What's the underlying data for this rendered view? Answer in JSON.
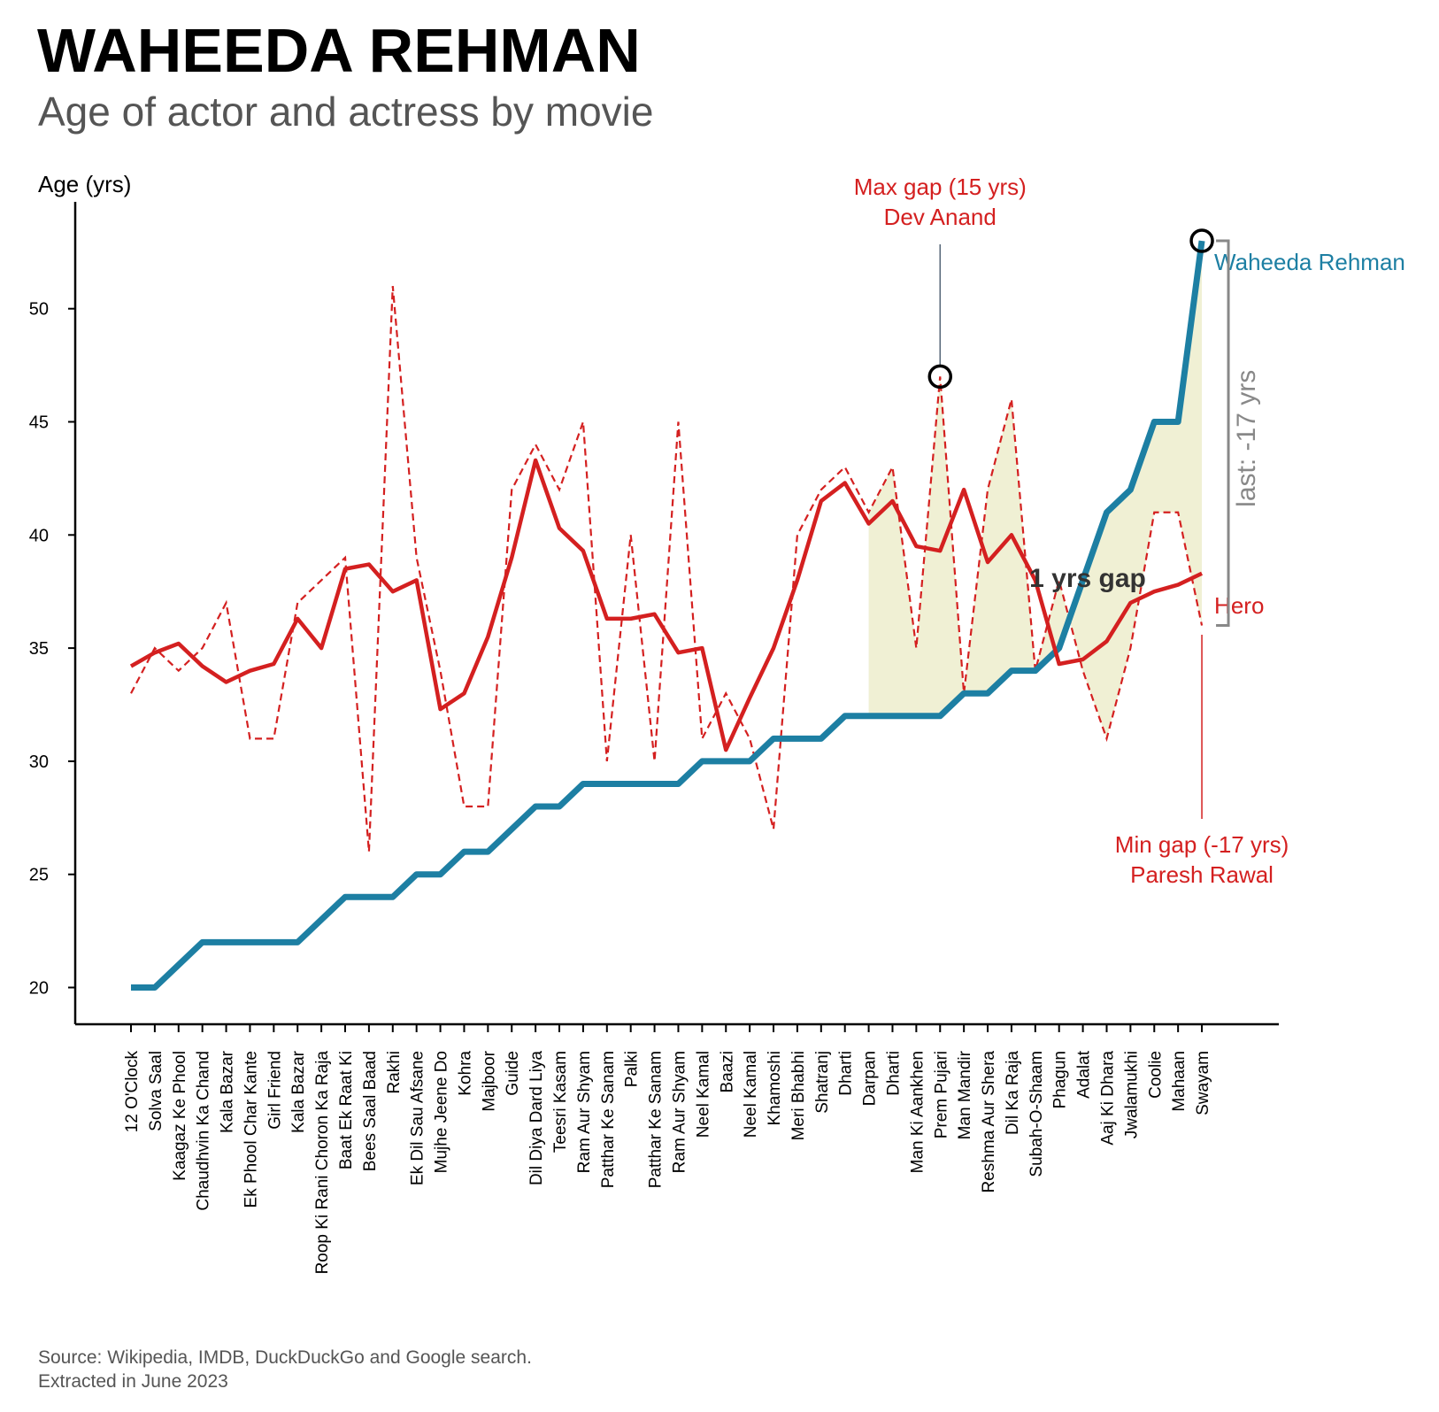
{
  "title": "WAHEEDA REHMAN",
  "subtitle": "Age of actor and actress by movie",
  "source_line1": "Source: Wikipedia, IMDB, DuckDuckGo and Google search.",
  "source_line2": "Extracted in June 2023",
  "colors": {
    "actress": "#1d7fa3",
    "hero": "#d42020",
    "fill": "#f0f0d4",
    "bracket": "#888888"
  },
  "chart_data": {
    "type": "line",
    "ylabel": "Age (yrs)",
    "xlabel": "",
    "ylim": [
      18.5,
      54.8
    ],
    "yticks": [
      20,
      25,
      30,
      35,
      40,
      45,
      50
    ],
    "categories": [
      "12 O'Clock",
      "Solva Saal",
      "Kaagaz Ke Phool",
      "Chaudhvin Ka Chand",
      "Kala Bazar",
      "Ek Phool Char Kante",
      "Girl Friend",
      "Kala Bazar",
      "Roop Ki Rani Choron Ka Raja",
      "Baat Ek Raat Ki",
      "Bees Saal Baad",
      "Rakhi",
      "Ek Dil Sau Afsane",
      "Mujhe Jeene Do",
      "Kohra",
      "Majboor",
      "Guide",
      "Dil Diya Dard Liya",
      "Teesri Kasam",
      "Ram Aur Shyam",
      "Patthar Ke Sanam",
      "Palki",
      "Patthar Ke Sanam",
      "Ram Aur Shyam",
      "Neel Kamal",
      "Baazi",
      "Neel Kamal",
      "Khamoshi",
      "Meri Bhabhi",
      "Shatranj",
      "Dharti",
      "Darpan",
      "Dharti",
      "Man Ki Aankhen",
      "Prem Pujari",
      "Man Mandir",
      "Reshma Aur Shera",
      "Dil Ka Raja",
      "Subah-O-Shaam",
      "Phagun",
      "Adalat",
      "Aaj Ki Dhara",
      "Jwalamukhi",
      "Coolie",
      "Mahaan",
      "Swayam"
    ],
    "series": [
      {
        "values": [
          20,
          20,
          21,
          22,
          22,
          22,
          22,
          22,
          23,
          24,
          24,
          24,
          25,
          25,
          26,
          26,
          27,
          28,
          28,
          29,
          29,
          29,
          29,
          29,
          30,
          30,
          30,
          31,
          31,
          31,
          32,
          32,
          32,
          32,
          32,
          33,
          33,
          34,
          34,
          35,
          38,
          41,
          42,
          45,
          45,
          53
        ]
      },
      {
        "values": [
          33,
          35,
          34,
          35,
          37,
          31,
          31,
          37,
          38,
          39,
          26,
          51,
          39,
          34,
          28,
          28,
          42,
          44,
          42,
          45,
          30,
          40,
          30,
          45,
          31,
          33,
          31,
          27,
          40,
          42,
          43,
          41,
          43,
          35,
          47,
          33,
          42,
          46,
          34,
          38,
          34,
          31,
          35,
          41,
          41,
          36
        ]
      },
      {
        "name": "Hero",
        "values": [
          34.2,
          34.8,
          35.2,
          34.2,
          33.5,
          34.0,
          34.3,
          36.3,
          35.0,
          38.5,
          38.7,
          37.5,
          38.0,
          32.3,
          33.0,
          35.5,
          39.0,
          43.3,
          40.3,
          39.3,
          36.3,
          36.3,
          36.5,
          34.8,
          35.0,
          30.5,
          32.8,
          35.0,
          38.0,
          41.5,
          42.3,
          40.5,
          41.5,
          39.5,
          39.3,
          42.0,
          38.8,
          40.0,
          38.0,
          34.3,
          34.5,
          35.3,
          37.0,
          37.5,
          37.8,
          38.3
        ]
      }
    ],
    "shaded_from_index": 31,
    "annotations": {
      "series_label_actress": "Waheeda Rehman",
      "series_label_hero": "Hero",
      "max_gap_line1": "Max gap (15 yrs)",
      "max_gap_line2": "Dev Anand",
      "max_gap_index": 34,
      "max_gap_value": 47,
      "min_gap_line1": "Min gap (-17 yrs)",
      "min_gap_line2": "Paresh Rawal",
      "min_gap_index": 45,
      "gap_label": "1 yrs gap",
      "last_label": "last: -17 yrs",
      "last_top": 53,
      "last_bottom": 36
    }
  }
}
